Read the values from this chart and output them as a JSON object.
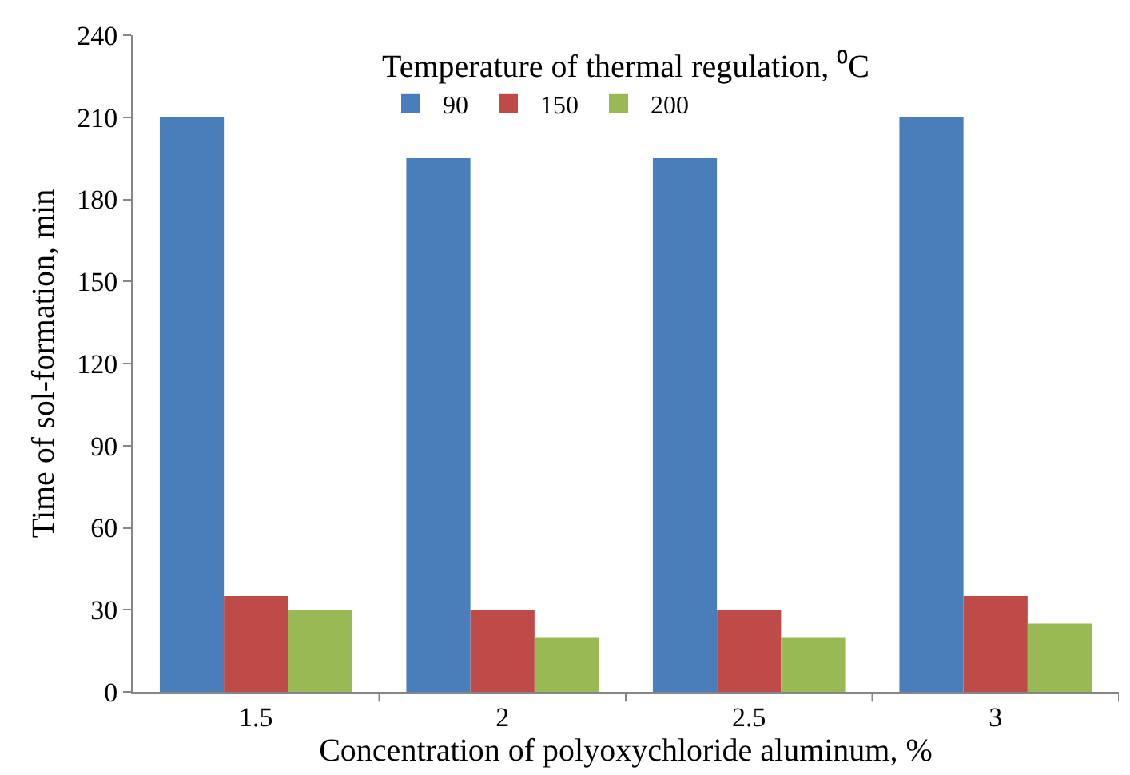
{
  "chart_data": {
    "type": "bar",
    "xlabel": "Concentration of polyoxychloride aluminum, %",
    "ylabel": "Time of sol-formation, min",
    "legend_title": "Temperature of thermal regulation, ⁰C",
    "categories": [
      "1.5",
      "2",
      "2.5",
      "3"
    ],
    "series": [
      {
        "name": "90",
        "color": "#4a7ebb",
        "values": [
          210,
          195,
          195,
          210
        ]
      },
      {
        "name": "150",
        "color": "#be4b48",
        "values": [
          35,
          30,
          30,
          35
        ]
      },
      {
        "name": "200",
        "color": "#98b954",
        "values": [
          30,
          20,
          20,
          25
        ]
      }
    ],
    "ylim": [
      0,
      240
    ],
    "yticks": [
      0,
      30,
      60,
      90,
      120,
      150,
      180,
      210,
      240
    ],
    "grid": false,
    "legend": "top"
  }
}
